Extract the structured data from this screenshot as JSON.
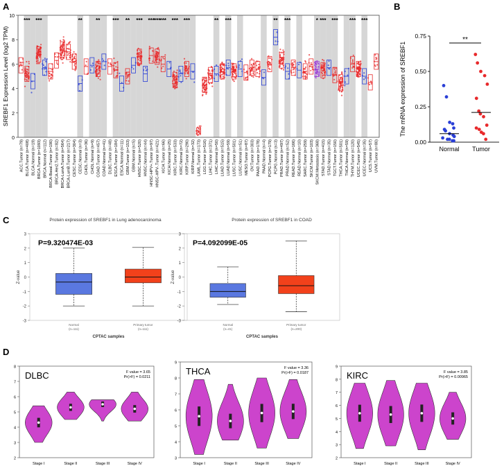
{
  "panels": {
    "a": "A",
    "b": "B",
    "c": "C",
    "d": "D"
  },
  "colors": {
    "tumor": "#e8292b",
    "normal": "#2a3fd6",
    "metastasis": "#9b3ad6",
    "shade": "#d6d6d6",
    "cptac_normal": "#5a78e0",
    "cptac_tumor": "#f2411b",
    "violin": "#cc44cc"
  },
  "chart_data": [
    {
      "id": "A",
      "type": "scatter",
      "title": "",
      "ylabel": "SREBF1 Expression Level (log2 TPM)",
      "ylim": [
        0,
        10
      ],
      "yticks": [
        0,
        2,
        4,
        6,
        8,
        10
      ],
      "categories": [
        "ACC.Tumor (n=79)",
        "BLCA.Tumor (n=408)",
        "BLCA.Normal (n=19)",
        "BRCA.Tumor (n=1093)",
        "BRCA.Normal (n=112)",
        "BRCA-Basal.Tumor (n=190)",
        "BRCA-Her2.Tumor (n=82)",
        "BRCA-LumA.Tumor (n=564)",
        "BRCA-LumB.Tumor (n=217)",
        "CESC.Tumor (n=304)",
        "CESC.Normal (n=3)",
        "CHOL.Tumor (n=36)",
        "CHOL.Normal (n=9)",
        "COAD.Tumor (n=457)",
        "COAD.Normal (n=41)",
        "DLBC.Tumor (n=48)",
        "ESCA.Tumor (n=184)",
        "ESCA.Normal (n=11)",
        "GBM.Tumor (n=153)",
        "GBM.Normal (n=5)",
        "HNSC.Tumor (n=520)",
        "HNSC.Normal (n=44)",
        "HNSC-HPV+.Tumor (n=97)",
        "HNSC-HPV-.Tumor (n=421)",
        "KICH.Tumor (n=66)",
        "KICH.Normal (n=25)",
        "KIRC.Tumor (n=533)",
        "KIRC.Normal (n=72)",
        "KIRP.Tumor (n=290)",
        "KIRP.Normal (n=32)",
        "LAML.Tumor (n=173)",
        "LGG.Tumor (n=516)",
        "LIHC.Tumor (n=371)",
        "LIHC.Normal (n=50)",
        "LUAD.Tumor (n=515)",
        "LUAD.Normal (n=59)",
        "LUSC.Tumor (n=501)",
        "LUSC.Normal (n=51)",
        "MESO.Tumor (n=87)",
        "OV.Tumor (n=303)",
        "PAAD.Tumor (n=178)",
        "PAAD.Normal (n=4)",
        "PCPG.Tumor (n=179)",
        "PCPG.Normal (n=3)",
        "PRAD.Tumor (n=497)",
        "PRAD.Normal (n=52)",
        "READ.Tumor (n=166)",
        "READ.Normal (n=10)",
        "SARC.Tumor (n=259)",
        "SKCM.Tumor (n=103)",
        "SKCM.Metastasis (n=368)",
        "STAD.Tumor (n=415)",
        "STAD.Normal (n=35)",
        "TGCT.Tumor (n=150)",
        "THCA.Tumor (n=501)",
        "THCA.Normal (n=59)",
        "THYM.Tumor (n=120)",
        "UCEC.Tumor (n=545)",
        "UCEC.Normal (n=35)",
        "UCS.Tumor (n=57)",
        "UVM.Tumor (n=80)"
      ],
      "medians": [
        5.9,
        5.2,
        4.6,
        6.8,
        5.7,
        5.4,
        6.3,
        7.2,
        7.0,
        6.2,
        4.4,
        5.8,
        5.9,
        5.6,
        6.2,
        5.8,
        5.5,
        4.4,
        5.0,
        5.9,
        6.6,
        5.2,
        6.7,
        6.6,
        6.0,
        5.6,
        4.7,
        5.2,
        5.6,
        5.4,
        0.5,
        4.3,
        5.1,
        5.2,
        5.4,
        5.7,
        5.4,
        5.6,
        5.3,
        5.7,
        5.6,
        4.9,
        6.0,
        8.2,
        6.3,
        5.4,
        5.7,
        5.5,
        5.4,
        5.8,
        5.6,
        5.5,
        5.7,
        5.1,
        4.5,
        5.0,
        6.0,
        5.6,
        5.0,
        4.5,
        6.2
      ],
      "significance": [
        "",
        "***",
        "",
        "***",
        "",
        "",
        "",
        "",
        "",
        "",
        "**",
        "",
        "",
        "**",
        "",
        "",
        "***",
        "",
        "**",
        "",
        "***",
        "",
        "***",
        "***",
        "***",
        "",
        "***",
        "",
        "***",
        "",
        "",
        "",
        "",
        "**",
        "",
        "***",
        "",
        "",
        "",
        "",
        "",
        "",
        "",
        "**",
        "",
        "***",
        "",
        "",
        "",
        "",
        "*",
        "***",
        "",
        "***",
        "",
        "",
        "***",
        "",
        "***",
        "",
        ""
      ]
    },
    {
      "id": "B",
      "type": "scatter",
      "ylabel": "The mRNA expression of SREBF1",
      "ylim": [
        0,
        0.75
      ],
      "yticks": [
        "0.00",
        "0.25",
        "0.50",
        "0.75"
      ],
      "categories": [
        "Normal",
        "Tumor"
      ],
      "significance": "**",
      "series": [
        {
          "name": "Normal",
          "mean": 0.06,
          "values": [
            0.4,
            0.32,
            0.14,
            0.13,
            0.1,
            0.09,
            0.08,
            0.06,
            0.05,
            0.04,
            0.03,
            0.02,
            0.02,
            0.01,
            0.01
          ]
        },
        {
          "name": "Tumor",
          "mean": 0.21,
          "values": [
            0.62,
            0.56,
            0.5,
            0.47,
            0.41,
            0.31,
            0.22,
            0.2,
            0.18,
            0.12,
            0.1,
            0.09,
            0.07,
            0.06,
            0.02
          ]
        }
      ]
    },
    {
      "id": "C1",
      "type": "box",
      "title": "Protein expression of SREBF1 in Lung adenocarcinoma",
      "annotation": "P=9.320474E-03",
      "xlabel": "CPTAC samples",
      "ylabel": "Z-value",
      "ylim": [
        -3,
        3
      ],
      "yticks": [
        -3,
        -2,
        -1,
        0,
        1,
        2,
        3
      ],
      "categories": [
        {
          "name": "Normal",
          "n": "(n=111)",
          "min": -2.0,
          "q1": -1.2,
          "median": -0.35,
          "q3": 0.25,
          "max": 2.0
        },
        {
          "name": "Primary tumor",
          "n": "(n=111)",
          "min": -2.0,
          "q1": -0.4,
          "median": 0.0,
          "q3": 0.55,
          "max": 2.05
        }
      ]
    },
    {
      "id": "C2",
      "type": "box",
      "title": "Protein expression of SREBF1 in COAD",
      "annotation": "P=4.092099E-05",
      "xlabel": "CPTAC samples",
      "ylabel": "Z-value",
      "ylim": [
        -3,
        3
      ],
      "yticks": [
        -3,
        -2,
        -1,
        0,
        1,
        2,
        3
      ],
      "categories": [
        {
          "name": "Normal",
          "n": "(n=41)",
          "min": -1.9,
          "q1": -1.4,
          "median": -1.0,
          "q3": -0.45,
          "max": 0.7
        },
        {
          "name": "Primary tumor",
          "n": "(n=200)",
          "min": -2.4,
          "q1": -1.15,
          "median": -0.6,
          "q3": 0.1,
          "max": 2.5
        }
      ]
    },
    {
      "id": "D1",
      "type": "violin",
      "title": "DLBC",
      "stats": [
        "F value = 3.65",
        "Pr(>F) = 0.0211"
      ],
      "ylim": [
        2,
        8
      ],
      "yticks": [
        2,
        3,
        4,
        5,
        6,
        7,
        8
      ],
      "categories": [
        "Stage I",
        "Stage II",
        "Stage III",
        "Stage IV"
      ],
      "medians": [
        4.3,
        5.3,
        5.5,
        5.2
      ],
      "ranges": [
        [
          3.0,
          5.4
        ],
        [
          4.5,
          6.3
        ],
        [
          4.4,
          5.8
        ],
        [
          4.4,
          6.3
        ]
      ]
    },
    {
      "id": "D2",
      "type": "violin",
      "title": "THCA",
      "stats": [
        "F value = 3.36",
        "Pr(>F) = 0.0187"
      ],
      "ylim": [
        3,
        9
      ],
      "yticks": [
        3,
        4,
        5,
        6,
        7,
        8,
        9
      ],
      "categories": [
        "Stage I",
        "Stage II",
        "Stage III",
        "Stage IV"
      ],
      "medians": [
        5.6,
        5.3,
        5.8,
        5.9
      ],
      "ranges": [
        [
          3.2,
          7.9
        ],
        [
          4.1,
          7.6
        ],
        [
          3.6,
          8.0
        ],
        [
          4.2,
          7.9
        ]
      ]
    },
    {
      "id": "D3",
      "type": "violin",
      "title": "KIRC",
      "stats": [
        "F value = 3.85",
        "Pr(>F) = 0.00965"
      ],
      "ylim": [
        2,
        9
      ],
      "yticks": [
        2,
        3,
        4,
        5,
        6,
        7,
        8,
        9
      ],
      "categories": [
        "Stage I",
        "Stage II",
        "Stage III",
        "Stage IV"
      ],
      "medians": [
        5.4,
        5.3,
        5.4,
        5.0
      ],
      "ranges": [
        [
          2.7,
          7.7
        ],
        [
          2.9,
          7.9
        ],
        [
          2.6,
          7.7
        ],
        [
          3.4,
          7.0
        ]
      ]
    }
  ]
}
